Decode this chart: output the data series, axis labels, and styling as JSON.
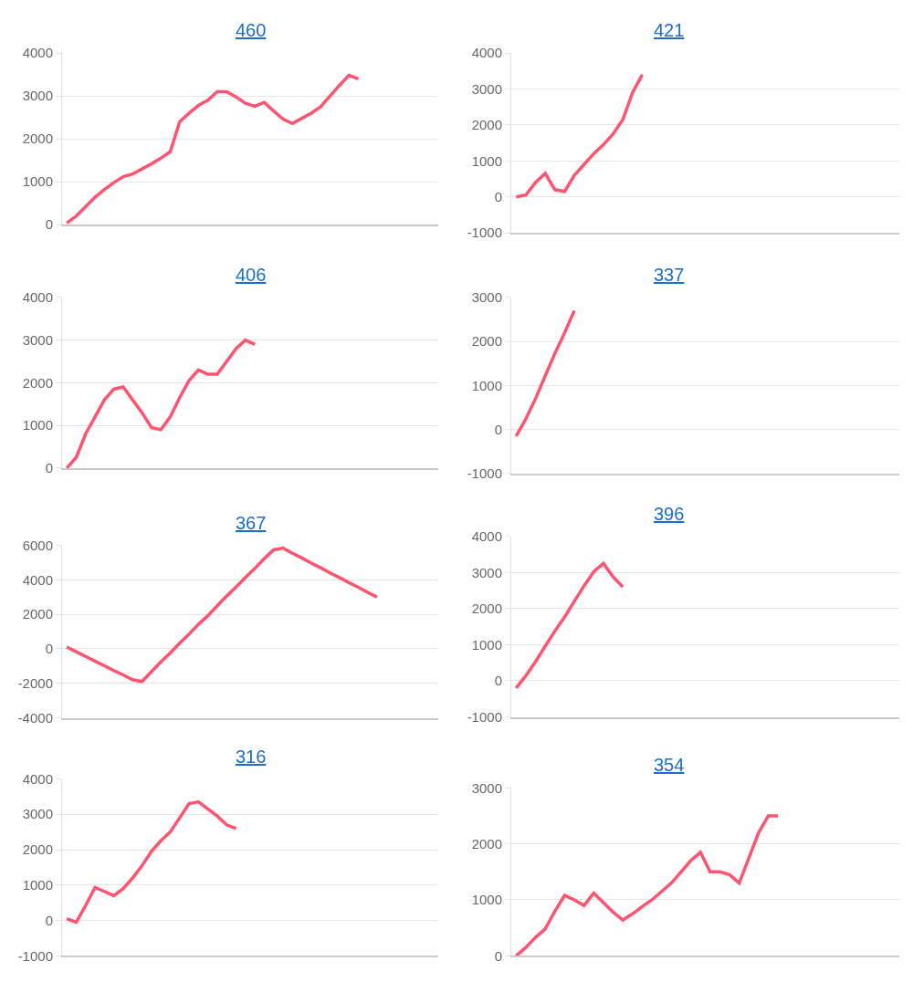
{
  "chart_data": [
    {
      "type": "line",
      "title": "460",
      "categories": [
        null,
        null,
        null,
        null,
        null,
        null,
        null,
        null,
        null,
        null,
        null,
        null,
        null,
        null,
        null,
        null,
        null,
        null,
        null,
        null,
        null,
        null,
        null,
        null,
        null,
        null,
        null,
        null,
        null,
        null,
        null,
        null,
        null,
        null,
        null,
        null,
        null,
        null,
        null,
        null
      ],
      "series": [
        {
          "color": "#ff5470",
          "values": [
            40,
            200,
            420,
            640,
            820,
            980,
            1120,
            1180,
            1300,
            1420,
            1550,
            1700,
            2400,
            2600,
            2780,
            2900,
            3100,
            3100,
            2980,
            2830,
            2760,
            2850,
            2650,
            2460,
            2360,
            2480,
            2600,
            2750,
            3000,
            3250,
            3480,
            3400,
            null,
            null,
            null,
            null,
            null,
            null,
            null,
            null
          ]
        }
      ],
      "ylim": [
        0,
        4000
      ],
      "yticks": [
        0,
        1000,
        2000,
        3000,
        4000
      ],
      "grid": "y",
      "tick_labels": "y"
    },
    {
      "type": "line",
      "title": "421",
      "categories": [
        null,
        null,
        null,
        null,
        null,
        null,
        null,
        null,
        null,
        null,
        null,
        null,
        null,
        null,
        null,
        null,
        null,
        null,
        null,
        null,
        null,
        null,
        null,
        null,
        null,
        null,
        null,
        null,
        null,
        null,
        null,
        null,
        null,
        null,
        null,
        null,
        null,
        null,
        null,
        null
      ],
      "series": [
        {
          "color": "#ff5470",
          "values": [
            0,
            50,
            400,
            650,
            200,
            150,
            600,
            900,
            1200,
            1450,
            1750,
            2150,
            2900,
            3400,
            null,
            null,
            null,
            null,
            null,
            null,
            null,
            null,
            null,
            null,
            null,
            null,
            null,
            null,
            null,
            null,
            null,
            null,
            null,
            null,
            null,
            null,
            null,
            null,
            null,
            null
          ]
        }
      ],
      "ylim": [
        -1000,
        4000
      ],
      "yticks": [
        -1000,
        0,
        1000,
        2000,
        3000,
        4000
      ],
      "grid": "y",
      "tick_labels": "y"
    },
    {
      "type": "line",
      "title": "406",
      "categories": [
        null,
        null,
        null,
        null,
        null,
        null,
        null,
        null,
        null,
        null,
        null,
        null,
        null,
        null,
        null,
        null,
        null,
        null,
        null,
        null,
        null,
        null,
        null,
        null,
        null,
        null,
        null,
        null,
        null,
        null,
        null,
        null,
        null,
        null,
        null,
        null,
        null,
        null,
        null,
        null
      ],
      "series": [
        {
          "color": "#ff5470",
          "values": [
            0,
            250,
            800,
            1200,
            1600,
            1850,
            1900,
            1600,
            1300,
            950,
            900,
            1200,
            1650,
            2050,
            2300,
            2200,
            2200,
            2500,
            2800,
            3000,
            2900,
            null,
            null,
            null,
            null,
            null,
            null,
            null,
            null,
            null,
            null,
            null,
            null,
            null,
            null,
            null,
            null,
            null,
            null,
            null
          ]
        }
      ],
      "ylim": [
        0,
        4000
      ],
      "yticks": [
        0,
        1000,
        2000,
        3000,
        4000
      ],
      "grid": "y",
      "tick_labels": "y"
    },
    {
      "type": "line",
      "title": "337",
      "categories": [
        null,
        null,
        null,
        null,
        null,
        null,
        null,
        null,
        null,
        null,
        null,
        null,
        null,
        null,
        null,
        null,
        null,
        null,
        null,
        null,
        null,
        null,
        null,
        null,
        null,
        null,
        null,
        null,
        null,
        null,
        null,
        null,
        null,
        null,
        null,
        null,
        null,
        null,
        null,
        null
      ],
      "series": [
        {
          "color": "#ff5470",
          "values": [
            -150,
            240,
            700,
            1220,
            1730,
            2200,
            2700,
            null,
            null,
            null,
            null,
            null,
            null,
            null,
            null,
            null,
            null,
            null,
            null,
            null,
            null,
            null,
            null,
            null,
            null,
            null,
            null,
            null,
            null,
            null,
            null,
            null,
            null,
            null,
            null,
            null,
            null,
            null,
            null,
            null
          ]
        }
      ],
      "ylim": [
        -1000,
        3000
      ],
      "yticks": [
        -1000,
        0,
        1000,
        2000,
        3000
      ],
      "grid": "y",
      "tick_labels": "y"
    },
    {
      "type": "line",
      "title": "367",
      "categories": [
        null,
        null,
        null,
        null,
        null,
        null,
        null,
        null,
        null,
        null,
        null,
        null,
        null,
        null,
        null,
        null,
        null,
        null,
        null,
        null,
        null,
        null,
        null,
        null,
        null,
        null,
        null,
        null,
        null,
        null,
        null,
        null,
        null,
        null,
        null,
        null,
        null,
        null,
        null,
        null
      ],
      "series": [
        {
          "color": "#ff5470",
          "values": [
            100,
            -170,
            -440,
            -710,
            -980,
            -1260,
            -1510,
            -1790,
            -1900,
            -1330,
            -760,
            -240,
            330,
            850,
            1420,
            1920,
            2500,
            3060,
            3580,
            4140,
            4660,
            5230,
            5740,
            5840,
            5540,
            5270,
            4970,
            4700,
            4400,
            4130,
            3840,
            3570,
            3270,
            3000,
            null,
            null,
            null,
            null,
            null,
            null
          ]
        }
      ],
      "ylim": [
        -4000,
        6000
      ],
      "yticks": [
        -4000,
        -2000,
        0,
        2000,
        4000,
        6000
      ],
      "grid": "y",
      "tick_labels": "y"
    },
    {
      "type": "line",
      "title": "396",
      "categories": [
        null,
        null,
        null,
        null,
        null,
        null,
        null,
        null,
        null,
        null,
        null,
        null,
        null,
        null,
        null,
        null,
        null,
        null,
        null,
        null,
        null,
        null,
        null,
        null,
        null,
        null,
        null,
        null,
        null,
        null,
        null,
        null,
        null,
        null,
        null,
        null,
        null,
        null,
        null,
        null
      ],
      "series": [
        {
          "color": "#ff5470",
          "values": [
            -200,
            140,
            530,
            960,
            1380,
            1770,
            2200,
            2630,
            3020,
            3250,
            2880,
            2600,
            null,
            null,
            null,
            null,
            null,
            null,
            null,
            null,
            null,
            null,
            null,
            null,
            null,
            null,
            null,
            null,
            null,
            null,
            null,
            null,
            null,
            null,
            null,
            null,
            null,
            null,
            null,
            null
          ]
        }
      ],
      "ylim": [
        -1000,
        4000
      ],
      "yticks": [
        -1000,
        0,
        1000,
        2000,
        3000,
        4000
      ],
      "grid": "y",
      "tick_labels": "y"
    },
    {
      "type": "line",
      "title": "316",
      "categories": [
        null,
        null,
        null,
        null,
        null,
        null,
        null,
        null,
        null,
        null,
        null,
        null,
        null,
        null,
        null,
        null,
        null,
        null,
        null,
        null,
        null,
        null,
        null,
        null,
        null,
        null,
        null,
        null,
        null,
        null,
        null,
        null,
        null,
        null,
        null,
        null,
        null,
        null,
        null,
        null
      ],
      "series": [
        {
          "color": "#ff5470",
          "values": [
            50,
            -50,
            420,
            930,
            820,
            700,
            900,
            1200,
            1550,
            1950,
            2250,
            2500,
            2900,
            3300,
            3350,
            3150,
            2950,
            2700,
            2600,
            null,
            null,
            null,
            null,
            null,
            null,
            null,
            null,
            null,
            null,
            null,
            null,
            null,
            null,
            null,
            null,
            null,
            null,
            null,
            null,
            null
          ]
        }
      ],
      "ylim": [
        -1000,
        4000
      ],
      "yticks": [
        -1000,
        0,
        1000,
        2000,
        3000,
        4000
      ],
      "grid": "y",
      "tick_labels": "y"
    },
    {
      "type": "line",
      "title": "354",
      "categories": [
        null,
        null,
        null,
        null,
        null,
        null,
        null,
        null,
        null,
        null,
        null,
        null,
        null,
        null,
        null,
        null,
        null,
        null,
        null,
        null,
        null,
        null,
        null,
        null,
        null,
        null,
        null,
        null,
        null,
        null,
        null,
        null,
        null,
        null,
        null,
        null,
        null,
        null,
        null,
        null
      ],
      "series": [
        {
          "color": "#ff5470",
          "values": [
            0,
            150,
            330,
            480,
            800,
            1080,
            1000,
            900,
            1120,
            950,
            780,
            640,
            750,
            880,
            1000,
            1150,
            1300,
            1500,
            1700,
            1850,
            1500,
            1500,
            1450,
            1300,
            1750,
            2200,
            2500,
            2500,
            null,
            null,
            null,
            null,
            null,
            null,
            null,
            null,
            null,
            null,
            null,
            null
          ]
        }
      ],
      "ylim": [
        0,
        3000
      ],
      "yticks": [
        0,
        1000,
        2000,
        3000
      ],
      "grid": "y",
      "tick_labels": "y"
    }
  ]
}
